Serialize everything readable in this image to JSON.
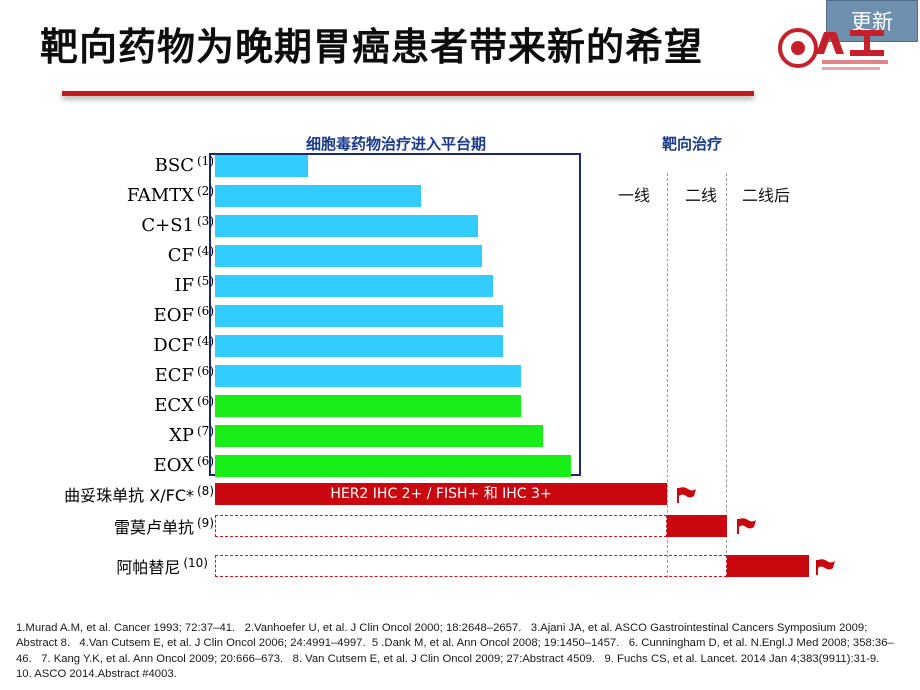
{
  "header": {
    "title": "靶向药物为晚期胃癌患者带来新的希望",
    "update_label": "更新",
    "logo_name": "Apatinib-logo"
  },
  "columns": {
    "chemo_header": "细胞毒药物治疗进入平台期",
    "targeted_header": "靶向治疗",
    "lines": [
      "一线",
      "二线",
      "二线后"
    ]
  },
  "chart_data": {
    "type": "bar",
    "orientation": "horizontal",
    "title": "",
    "categories": [
      "BSC",
      "FAMTX",
      "C+S1",
      "CF",
      "IF",
      "EOF",
      "DCF",
      "ECF",
      "ECX",
      "XP",
      "EOX"
    ],
    "references": [
      "(1)",
      "(2)",
      "(3)",
      "(4)",
      "(5)",
      "(6)",
      "(4)",
      "(6)",
      "(6)",
      "(7)",
      "(6)"
    ],
    "values": [
      0.26,
      0.58,
      0.74,
      0.75,
      0.78,
      0.81,
      0.81,
      0.86,
      0.86,
      0.92,
      1.0
    ],
    "colors": [
      "#33ccff",
      "#33ccff",
      "#33ccff",
      "#33ccff",
      "#33ccff",
      "#33ccff",
      "#33ccff",
      "#33ccff",
      "#19ee19",
      "#19ee19",
      "#19ee19"
    ]
  },
  "targeted_rows": [
    {
      "label": "曲妥珠单抗 X/FC*",
      "ref": "(8)",
      "bar_text": "HER2 IHC 2+ / FISH+ 和 IHC 3+",
      "line": "一线"
    },
    {
      "label": "雷莫卢单抗",
      "ref": "(9)",
      "bar_text": "",
      "line": "二线"
    },
    {
      "label": "阿帕替尼",
      "ref": "(10)",
      "bar_text": "",
      "line": "二线后"
    }
  ],
  "colors": {
    "accent_red": "#c8070f",
    "chemo_blue": "#33ccff",
    "chemo_green": "#19ee19",
    "header_blue": "#1a3a8c",
    "update_button": "#6e8fae"
  },
  "references": [
    "1.Murad A.M, et al. Cancer 1993; 72:37–41.",
    "2.Vanhoefer U, et al. J Clin Oncol 2000; 18:2648–2657.",
    "3.Ajani JA, et al. ASCO Gastrointestinal Cancers Symposium 2009; Abstract 8.",
    "4.Van Cutsem E, et al. J Clin Oncol 2006; 24:4991–4997.",
    "5 .Dank M, et al. Ann Oncol 2008; 19:1450–1457.",
    "6. Cunningham D, et al. N.Engl.J Med 2008; 358:36–46.",
    "7. Kang Y.K, et al. Ann Oncol 2009; 20:666–673.",
    "8. Van Cutsem E, et al. J Clin Oncol 2009; 27:Abstract 4509.",
    "9. Fuchs CS, et al. Lancet. 2014 Jan 4;383(9911):31-9.",
    "10. ASCO 2014.Abstract #4003."
  ]
}
